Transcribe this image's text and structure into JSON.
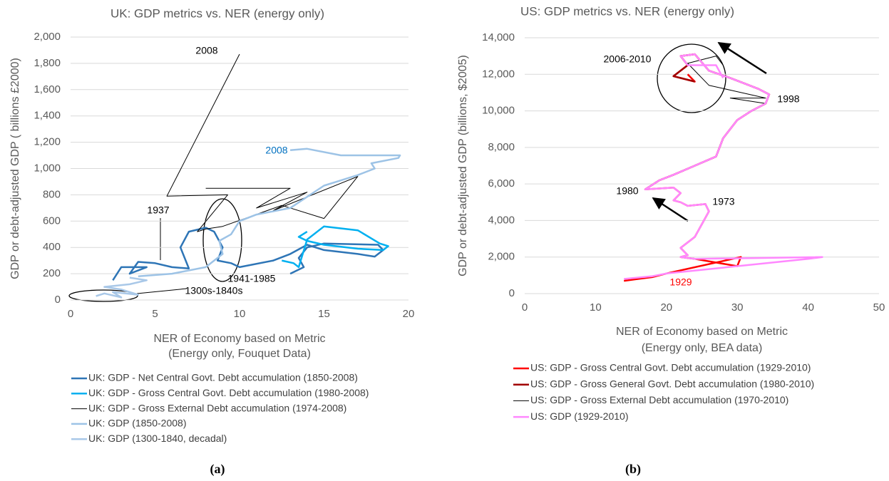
{
  "chart_data": [
    {
      "type": "line",
      "title": "UK: GDP metrics vs. NER (energy only)",
      "xlabel": [
        "NER of Economy based on Metric",
        "(Energy only, Fouquet Data)"
      ],
      "ylabel": "GDP or debt-adjusted GDP ( billions £2000)",
      "caption": "(a)",
      "xlim": [
        0,
        20
      ],
      "xticks": [
        0,
        5,
        10,
        15,
        20
      ],
      "ylim": [
        0,
        2000
      ],
      "yticks": [
        0,
        200,
        400,
        600,
        800,
        {
          "value": 1000,
          "label": "1,000"
        },
        {
          "value": 1200,
          "label": "1,200"
        },
        {
          "value": 1400,
          "label": "1,400"
        },
        {
          "value": 1600,
          "label": "1,600"
        },
        {
          "value": 1800,
          "label": "1,800"
        },
        {
          "value": 2000,
          "label": "2,000"
        }
      ],
      "grid": true,
      "annotations": [
        {
          "text": "2008",
          "color": "#000000"
        },
        {
          "text": "2008",
          "color": "#0070c0"
        },
        {
          "text": "1937",
          "color": "#000000"
        },
        {
          "text": "1941-1985",
          "color": "#000000"
        },
        {
          "text": "1300s-1840s",
          "color": "#000000"
        }
      ],
      "series": [
        {
          "name": "UK: GDP - Net Central Govt. Debt accumulation (1850-2008)",
          "color": "#2e75b6",
          "width": 2.5,
          "x": [
            2.5,
            3,
            4.5,
            3.5,
            4,
            5,
            6,
            7,
            6.5,
            7,
            8,
            8.5,
            9,
            8.7,
            9.5,
            10,
            12,
            13,
            14,
            15,
            17,
            18,
            18.5,
            18.2,
            15,
            14,
            13.5,
            13.8,
            13
          ],
          "values": [
            150,
            250,
            250,
            200,
            290,
            280,
            250,
            240,
            400,
            520,
            550,
            520,
            400,
            300,
            280,
            250,
            300,
            350,
            420,
            380,
            350,
            330,
            380,
            420,
            430,
            400,
            320,
            250,
            200
          ]
        },
        {
          "name": "UK: GDP - Gross Central Govt. Debt accumulation (1980-2008)",
          "color": "#00b0f0",
          "width": 2.5,
          "x": [
            12.5,
            13.2,
            13.5,
            14,
            15,
            17,
            18.3,
            18.8,
            18.5,
            17,
            15,
            14,
            13.5,
            14
          ],
          "values": [
            300,
            280,
            250,
            460,
            560,
            530,
            430,
            410,
            380,
            390,
            420,
            450,
            480,
            520
          ]
        },
        {
          "name": "UK: GDP - Gross External Debt accumulation (1974-2008)",
          "color": "#000000",
          "width": 1,
          "x": [
            8,
            13,
            11,
            14,
            12,
            17,
            15,
            12.5,
            9,
            8,
            7.5,
            9.3,
            5.7,
            10
          ],
          "values": [
            850,
            850,
            700,
            820,
            680,
            940,
            620,
            720,
            560,
            540,
            520,
            800,
            790,
            1870
          ]
        },
        {
          "name": "UK: GDP (1850-2008)",
          "color": "#9dc3e6",
          "width": 2.5,
          "x": [
            4,
            6,
            8,
            8.5,
            9,
            8.8,
            9.5,
            10,
            11,
            13,
            15,
            17,
            18,
            17.8,
            19.4,
            19.5,
            16,
            14,
            13
          ],
          "values": [
            180,
            200,
            250,
            300,
            350,
            450,
            500,
            600,
            650,
            700,
            870,
            950,
            1000,
            1040,
            1080,
            1100,
            1100,
            1150,
            1140
          ]
        },
        {
          "name": "UK: GDP (1300-1840, decadal)",
          "color": "#a9c8e8",
          "width": 2.5,
          "x": [
            1.5,
            2,
            3,
            2.5,
            4,
            3,
            2,
            3.5,
            4.5,
            3.5
          ],
          "values": [
            30,
            50,
            20,
            60,
            40,
            80,
            100,
            120,
            150,
            170
          ]
        }
      ]
    },
    {
      "type": "line",
      "title": "US: GDP metrics vs. NER (energy only)",
      "xlabel": [
        "NER of Economy based on Metric",
        "(Energy only, BEA data)"
      ],
      "ylabel": "GDP or debt-adjusted GDP (billions, $2005)",
      "caption": "(b)",
      "xlim": [
        0,
        50
      ],
      "xticks": [
        0,
        10,
        20,
        30,
        40,
        50
      ],
      "ylim": [
        0,
        14000
      ],
      "yticks": [
        0,
        {
          "value": 2000,
          "label": "2,000"
        },
        {
          "value": 4000,
          "label": "4,000"
        },
        {
          "value": 6000,
          "label": "6,000"
        },
        {
          "value": 8000,
          "label": "8,000"
        },
        {
          "value": 10000,
          "label": "10,000"
        },
        {
          "value": 12000,
          "label": "12,000"
        },
        {
          "value": 14000,
          "label": "14,000"
        }
      ],
      "grid": true,
      "annotations": [
        {
          "text": "2006-2010",
          "color": "#000000"
        },
        {
          "text": "1998",
          "color": "#000000"
        },
        {
          "text": "1980",
          "color": "#000000"
        },
        {
          "text": "1973",
          "color": "#000000"
        },
        {
          "text": "1929",
          "color": "#ff0000"
        }
      ],
      "series": [
        {
          "name": "US: GDP - Gross Central Govt. Debt accumulation (1929-2010)",
          "color": "#ff0000",
          "width": 2.5,
          "x": [
            14,
            18,
            20,
            30.5,
            30,
            24,
            22,
            23,
            22,
            24,
            25,
            26,
            25.5,
            23,
            22,
            21,
            22,
            21,
            17,
            19,
            21,
            24,
            27,
            28,
            30,
            32,
            34,
            34.5,
            33,
            31,
            29,
            26,
            24,
            22,
            23,
            21,
            24,
            23
          ],
          "values": [
            700,
            900,
            1100,
            2000,
            1500,
            1900,
            2000,
            2100,
            2500,
            3100,
            3800,
            4500,
            4900,
            4800,
            5000,
            5100,
            5500,
            5800,
            5700,
            6200,
            6500,
            7000,
            7500,
            8500,
            9500,
            10000,
            10400,
            10900,
            11200,
            11500,
            11800,
            12200,
            13100,
            13000,
            12500,
            11900,
            11600,
            12000
          ]
        },
        {
          "name": "US: GDP - Gross General Govt. Debt accumulation (1980-2010)",
          "color": "#a00000",
          "width": 2.5,
          "x": [
            17,
            19,
            21,
            24,
            27,
            28,
            30,
            32,
            34,
            34.5,
            33,
            31,
            29,
            26,
            24,
            22,
            23,
            21,
            24
          ],
          "values": [
            5700,
            6200,
            6500,
            7000,
            7500,
            8500,
            9500,
            10000,
            10400,
            10900,
            11200,
            11500,
            11800,
            12200,
            13100,
            13000,
            12500,
            11900,
            11600
          ]
        },
        {
          "name": "US: GDP - Gross External Debt accumulation (1970-2010)",
          "color": "#000000",
          "width": 1,
          "x": [
            22,
            21,
            22,
            21,
            17,
            19,
            21,
            24,
            27,
            28,
            30,
            32,
            34,
            29,
            34,
            26,
            23,
            27,
            28
          ],
          "values": [
            5000,
            5100,
            5500,
            5800,
            5700,
            6200,
            6500,
            7000,
            7500,
            8500,
            9500,
            10000,
            10400,
            10700,
            10700,
            11400,
            12600,
            13000,
            12500
          ]
        },
        {
          "name": "US: GDP (1929-2010)",
          "color": "#ff88ff",
          "width": 2.5,
          "x": [
            14,
            18,
            20,
            40,
            42,
            24,
            22,
            23,
            22,
            24,
            25,
            26,
            25.5,
            23,
            22,
            21,
            22,
            21,
            17,
            19,
            21,
            24,
            27,
            28,
            30,
            32,
            34,
            34.5,
            33,
            31,
            29,
            26,
            24,
            22,
            23,
            27,
            28
          ],
          "values": [
            800,
            950,
            1100,
            1900,
            2000,
            1900,
            2000,
            2100,
            2500,
            3100,
            3800,
            4500,
            4900,
            4800,
            5000,
            5100,
            5500,
            5800,
            5700,
            6200,
            6500,
            7000,
            7500,
            8500,
            9500,
            10000,
            10400,
            10900,
            11200,
            11500,
            11800,
            12200,
            13100,
            13000,
            12500,
            12500,
            11800
          ]
        }
      ]
    }
  ]
}
